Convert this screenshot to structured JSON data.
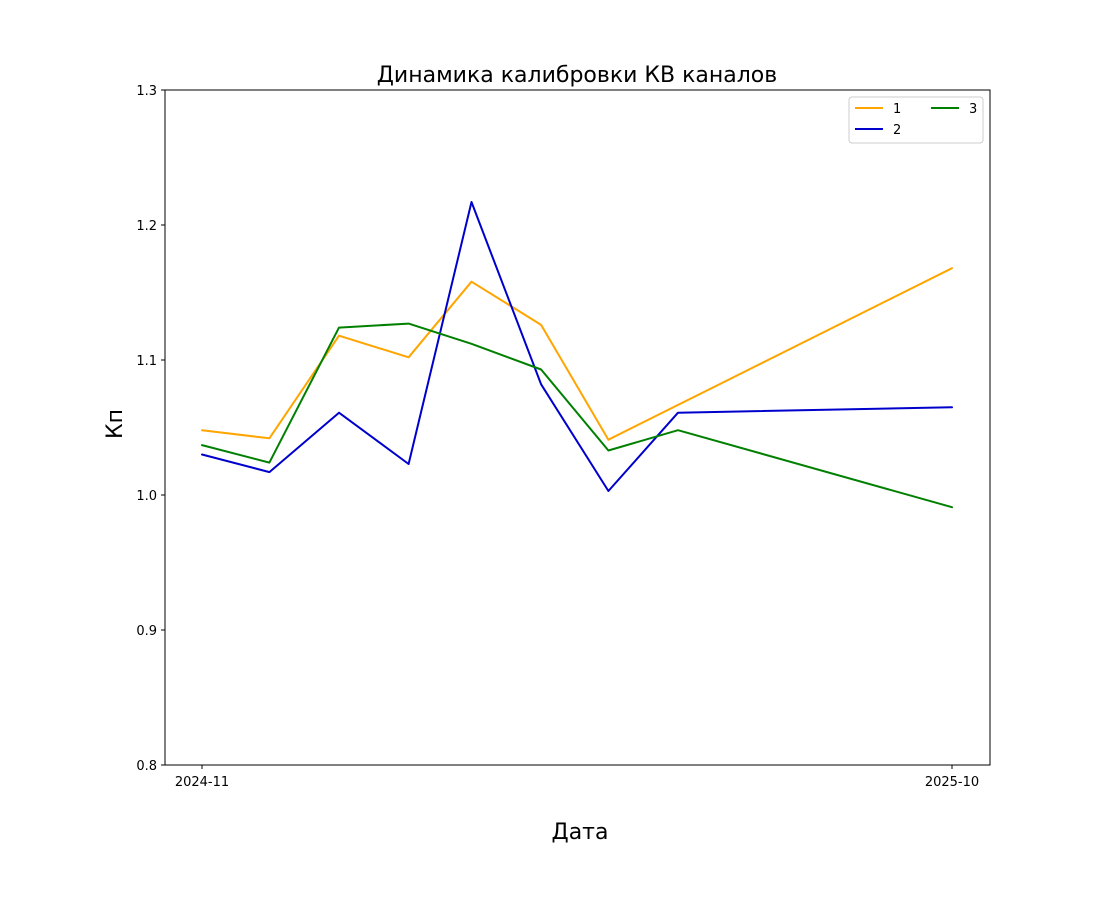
{
  "chart_data": {
    "type": "line",
    "title": "Динамика калибровки КВ каналов",
    "xlabel": "Дата",
    "ylabel": "Кп",
    "x_tick_labels": [
      "2024-11",
      "2025-10"
    ],
    "ylim": [
      0.8,
      1.3
    ],
    "y_ticks": [
      "0.8",
      "0.9",
      "1.0",
      "1.1",
      "1.2",
      "1.3"
    ],
    "grid": false,
    "legend_position": "top-right",
    "x": [
      "2024-11-01",
      "2024-12-01",
      "2025-01-01",
      "2025-02-01",
      "2025-03-01",
      "2025-04-01",
      "2025-05-01",
      "2025-06-01",
      "2025-10-01"
    ],
    "series": [
      {
        "name": "1",
        "color": "#FFA500",
        "values": [
          1.048,
          1.042,
          1.118,
          1.102,
          1.158,
          1.126,
          1.041,
          null,
          1.168
        ]
      },
      {
        "name": "2",
        "color": "#0000CD",
        "values": [
          1.03,
          1.017,
          1.061,
          1.023,
          1.217,
          1.082,
          1.003,
          1.061,
          1.065
        ]
      },
      {
        "name": "3",
        "color": "#008000",
        "values": [
          1.037,
          1.024,
          1.124,
          1.127,
          1.112,
          1.093,
          1.033,
          1.048,
          0.991
        ]
      }
    ]
  }
}
